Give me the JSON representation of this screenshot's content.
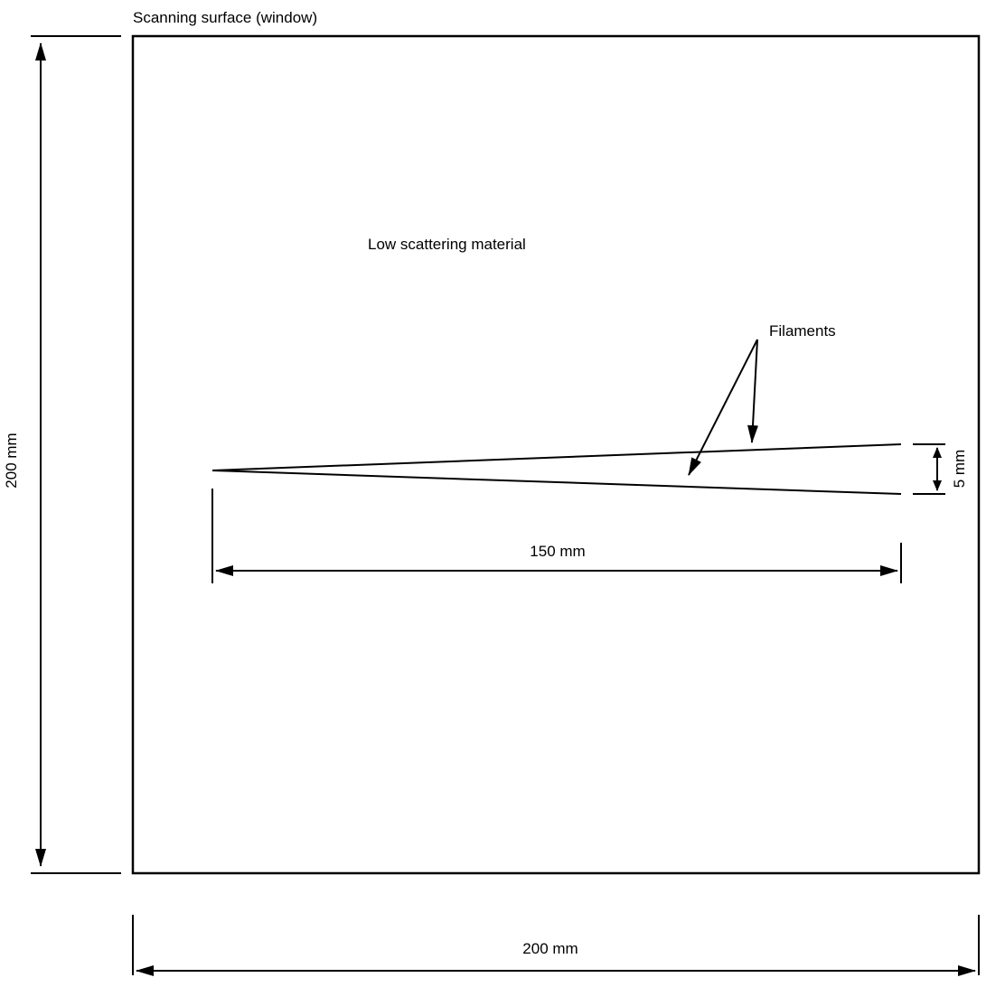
{
  "labels": {
    "window": "Scanning surface (window)",
    "material": "Low scattering material",
    "filaments": "Filaments",
    "height_dim": "200 mm",
    "width_dim": "200 mm",
    "length_dim": "150 mm",
    "gap_dim": "5 mm"
  }
}
